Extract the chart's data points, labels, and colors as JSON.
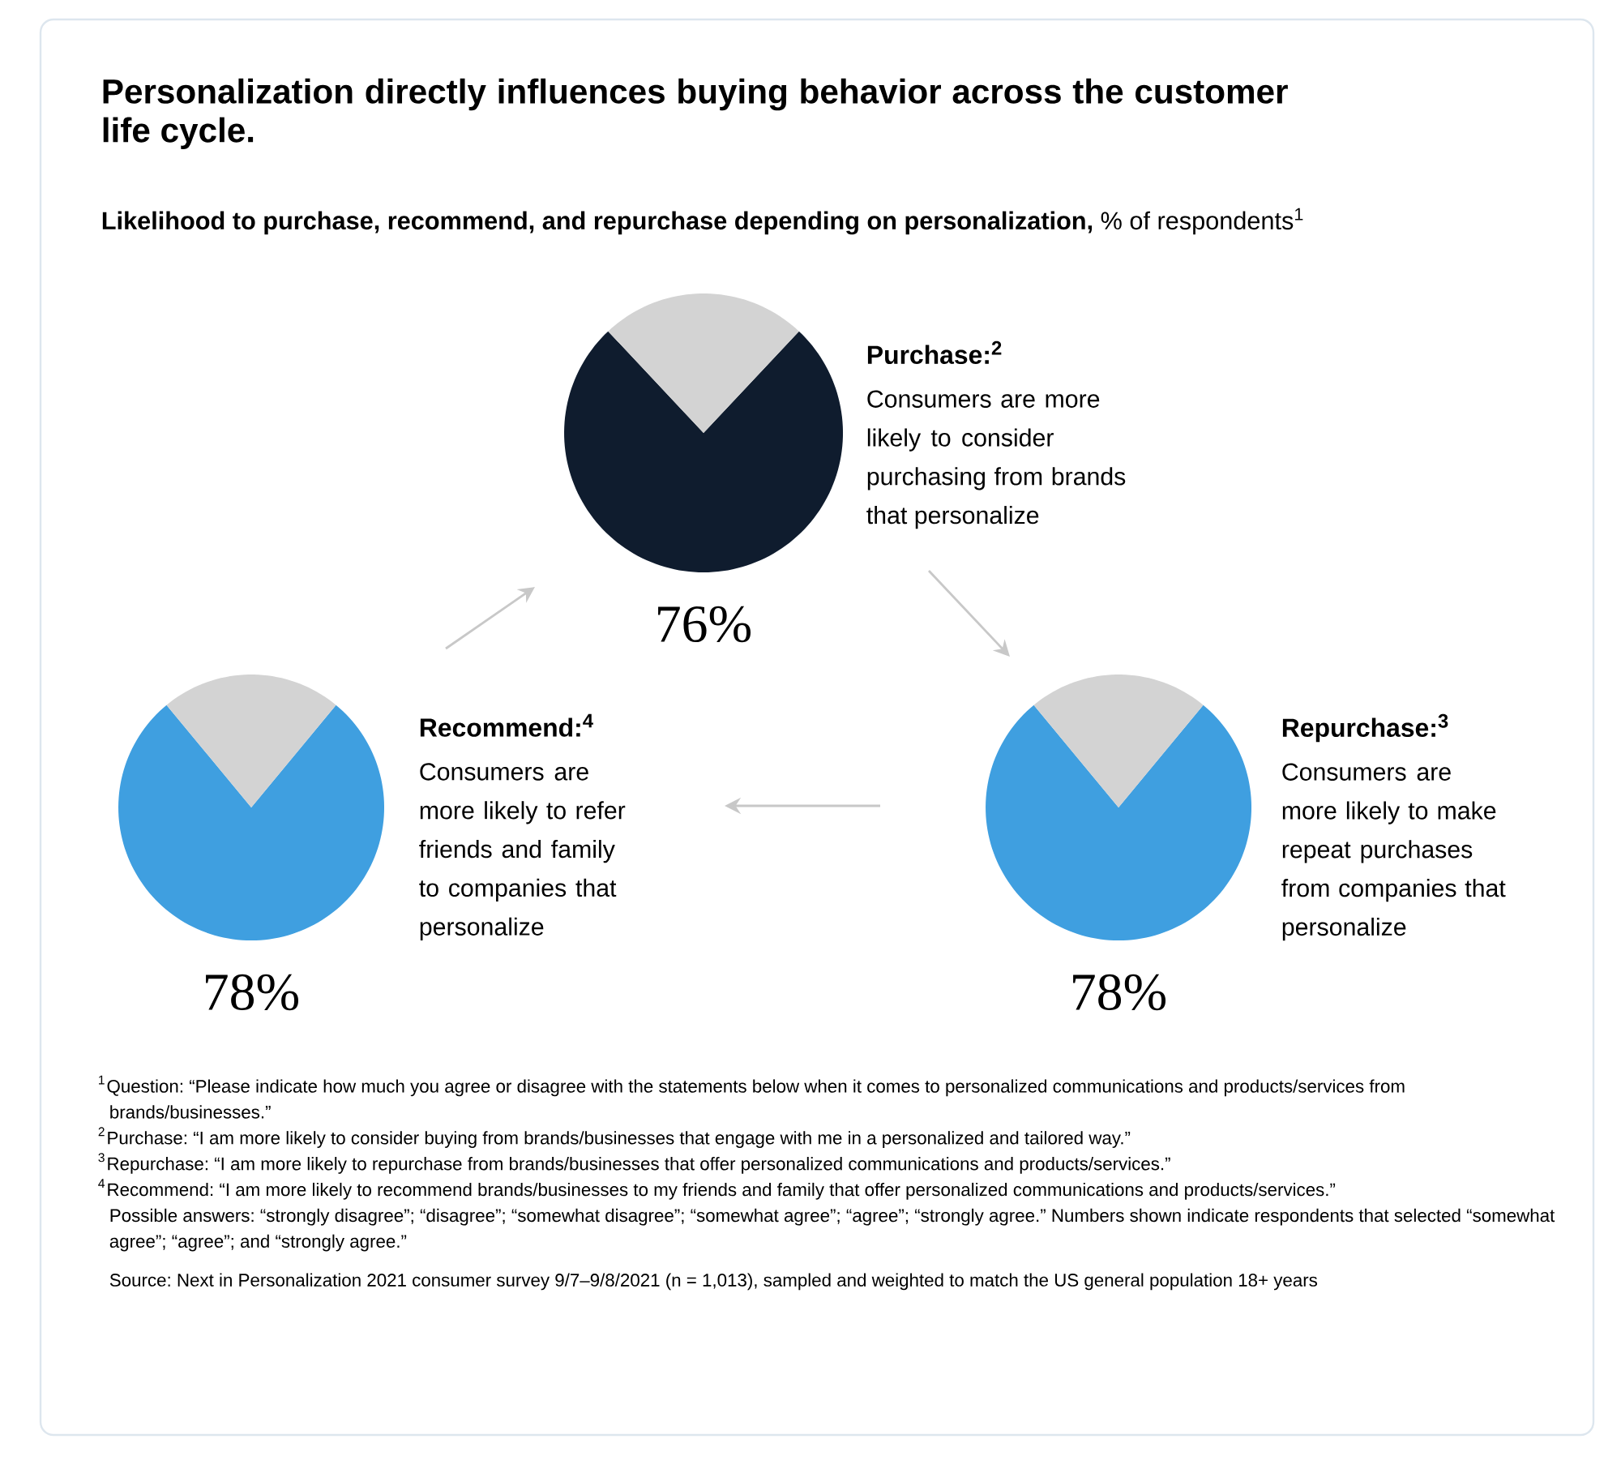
{
  "chart_data": [
    {
      "type": "other",
      "title": "Personalization directly influences buying behavior across the customer life cycle.",
      "subtitle": "**Likelihood to purchase, recommend, and repurchase depending on personalization,** % of respondents$^{1}$",
      "annotations": [
        "$^{1}$Question: “Please indicate how much you agree or disagree with the statements below when it comes to personalized communications and products/services from brands/businesses.”",
        "$^{2}$Purchase: “I am more likely to consider buying from brands/businesses that engage with me in a personalized and tailored way.”",
        "$^{3}$Repurchase: “I am more likely to repurchase from brands/businesses that offer personalized communications and products/services.”",
        "$^{4}$Recommend: “I am more likely to recommend brands/businesses to my friends and family that offer personalized communications and products/services.”",
        "Possible answers: “strongly disagree”; “disagree”; “somewhat disagree”; “somewhat agree”; “agree”; “strongly agree.” Numbers shown indicate respondents that selected “somewhat agree”; “agree”; and “strongly agree.”",
        "Source: Next in Personalization 2021 consumer survey 9/7–9/8/2021 (n = 1,013), sampled and weighted to match the US general population 18+ years"
      ]
    },
    {
      "type": "pie",
      "title": "Purchase:$^{2}$",
      "subtitle": "Consumers are more likely to consider purchasing from brands that personalize",
      "categories": [
        null,
        null
      ],
      "values": [
        76,
        24
      ],
      "colors": [
        "#0f1c2e",
        "#d3d3d3"
      ],
      "value_labels": [
        "76%",
        null
      ]
    },
    {
      "type": "pie",
      "title": "Recommend:$^{4}$",
      "subtitle": "Consumers are more likely to refer friends and family to companies that personalize",
      "categories": [
        null,
        null
      ],
      "values": [
        78,
        22
      ],
      "colors": [
        "#3f9fe0",
        "#d3d3d3"
      ],
      "value_labels": [
        "78%",
        null
      ]
    },
    {
      "type": "pie",
      "title": "Repurchase:$^{3}$",
      "subtitle": "Consumers are more likely to make repeat purchases from companies that personalize",
      "categories": [
        null,
        null
      ],
      "values": [
        78,
        22
      ],
      "colors": [
        "#3f9fe0",
        "#d3d3d3"
      ],
      "value_labels": [
        "78%",
        null
      ]
    }
  ]
}
